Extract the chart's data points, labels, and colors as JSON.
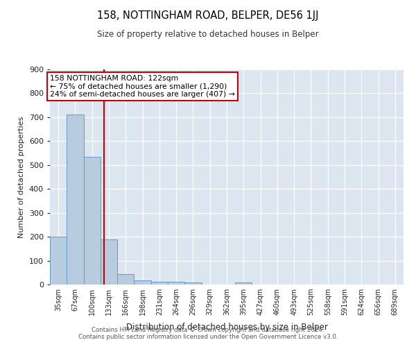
{
  "title": "158, NOTTINGHAM ROAD, BELPER, DE56 1JJ",
  "subtitle": "Size of property relative to detached houses in Belper",
  "xlabel": "Distribution of detached houses by size in Belper",
  "ylabel": "Number of detached properties",
  "categories": [
    "35sqm",
    "67sqm",
    "100sqm",
    "133sqm",
    "166sqm",
    "198sqm",
    "231sqm",
    "264sqm",
    "296sqm",
    "329sqm",
    "362sqm",
    "395sqm",
    "427sqm",
    "460sqm",
    "493sqm",
    "525sqm",
    "558sqm",
    "591sqm",
    "624sqm",
    "656sqm",
    "689sqm"
  ],
  "values": [
    200,
    710,
    535,
    190,
    45,
    18,
    13,
    12,
    10,
    0,
    0,
    9,
    0,
    0,
    0,
    0,
    0,
    0,
    0,
    0,
    0
  ],
  "bar_color": "#b8ccdf",
  "bar_edge_color": "#6699cc",
  "background_color": "#dce6f0",
  "ylim": [
    0,
    900
  ],
  "yticks": [
    0,
    100,
    200,
    300,
    400,
    500,
    600,
    700,
    800,
    900
  ],
  "red_line_x": 2.72,
  "red_line_color": "#cc0000",
  "annotation_line1": "158 NOTTINGHAM ROAD: 122sqm",
  "annotation_line2": "← 75% of detached houses are smaller (1,290)",
  "annotation_line3": "24% of semi-detached houses are larger (407) →",
  "annotation_box_edge": "#cc0000",
  "footer_line1": "Contains HM Land Registry data © Crown copyright and database right 2024.",
  "footer_line2": "Contains public sector information licensed under the Open Government Licence v3.0."
}
